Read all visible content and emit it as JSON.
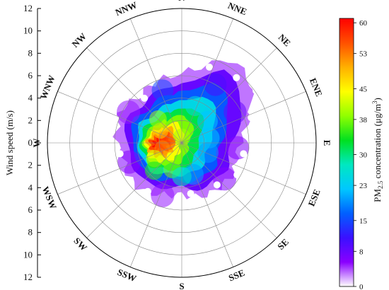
{
  "chart_data": {
    "type": "polar-heatmap",
    "directions": [
      "N",
      "NNE",
      "NE",
      "ENE",
      "E",
      "ESE",
      "SE",
      "SSE",
      "S",
      "SSW",
      "SW",
      "WSW",
      "W",
      "WNW",
      "NW",
      "NNW"
    ],
    "radial_axis": {
      "label": "Wind speed (m/s)",
      "range": [
        0,
        12
      ],
      "ticks_upper": [
        "12",
        "10",
        "8",
        "6",
        "4",
        "2",
        "0"
      ],
      "ticks_lower": [
        "2",
        "4",
        "6",
        "8",
        "10",
        "12"
      ]
    },
    "colorbar": {
      "label_main": "PM",
      "label_sub": "2.5",
      "label_rest": " concentration (μg/m",
      "label_sup": "3",
      "label_end": ")",
      "range": [
        0,
        61
      ],
      "ticks": [
        "60",
        "53",
        "45",
        "38",
        "30",
        "23",
        "15",
        "8",
        "0"
      ],
      "colors": [
        "#ffffff",
        "#8a00ff",
        "#3a10ff",
        "#0060ff",
        "#00c8ff",
        "#00e8c0",
        "#00e020",
        "#90ff00",
        "#ffff00",
        "#ffb000",
        "#ff5000",
        "#ff0000"
      ]
    },
    "values": {
      "description_free": true,
      "blobs": [
        {
          "dir_deg": 0,
          "speed": 0.5,
          "value": 40
        },
        {
          "dir_deg": 270,
          "speed": 1.2,
          "value": 58
        },
        {
          "dir_deg": 285,
          "speed": 1.5,
          "value": 55
        },
        {
          "dir_deg": 255,
          "speed": 1.8,
          "value": 52
        },
        {
          "dir_deg": 300,
          "speed": 2.2,
          "value": 48
        },
        {
          "dir_deg": 240,
          "speed": 2.8,
          "value": 42
        },
        {
          "dir_deg": 315,
          "speed": 3.0,
          "value": 40
        },
        {
          "dir_deg": 200,
          "speed": 2.5,
          "value": 38
        },
        {
          "dir_deg": 225,
          "speed": 3.5,
          "value": 35
        },
        {
          "dir_deg": 20,
          "speed": 3.5,
          "value": 25
        },
        {
          "dir_deg": 50,
          "speed": 3.0,
          "value": 22
        },
        {
          "dir_deg": 80,
          "speed": 2.5,
          "value": 22
        },
        {
          "dir_deg": 110,
          "speed": 2.5,
          "value": 20
        },
        {
          "dir_deg": 160,
          "speed": 3.0,
          "value": 20
        },
        {
          "dir_deg": 180,
          "speed": 3.0,
          "value": 28
        },
        {
          "dir_deg": 340,
          "speed": 5.0,
          "value": 15
        },
        {
          "dir_deg": 30,
          "speed": 6.0,
          "value": 10
        },
        {
          "dir_deg": 60,
          "speed": 5.5,
          "value": 8
        },
        {
          "dir_deg": 95,
          "speed": 5.0,
          "value": 6
        },
        {
          "dir_deg": 130,
          "speed": 5.0,
          "value": 6
        },
        {
          "dir_deg": 200,
          "speed": 5.0,
          "value": 5
        },
        {
          "dir_deg": 250,
          "speed": 5.0,
          "value": 6
        },
        {
          "dir_deg": 300,
          "speed": 5.5,
          "value": 5
        }
      ]
    }
  }
}
